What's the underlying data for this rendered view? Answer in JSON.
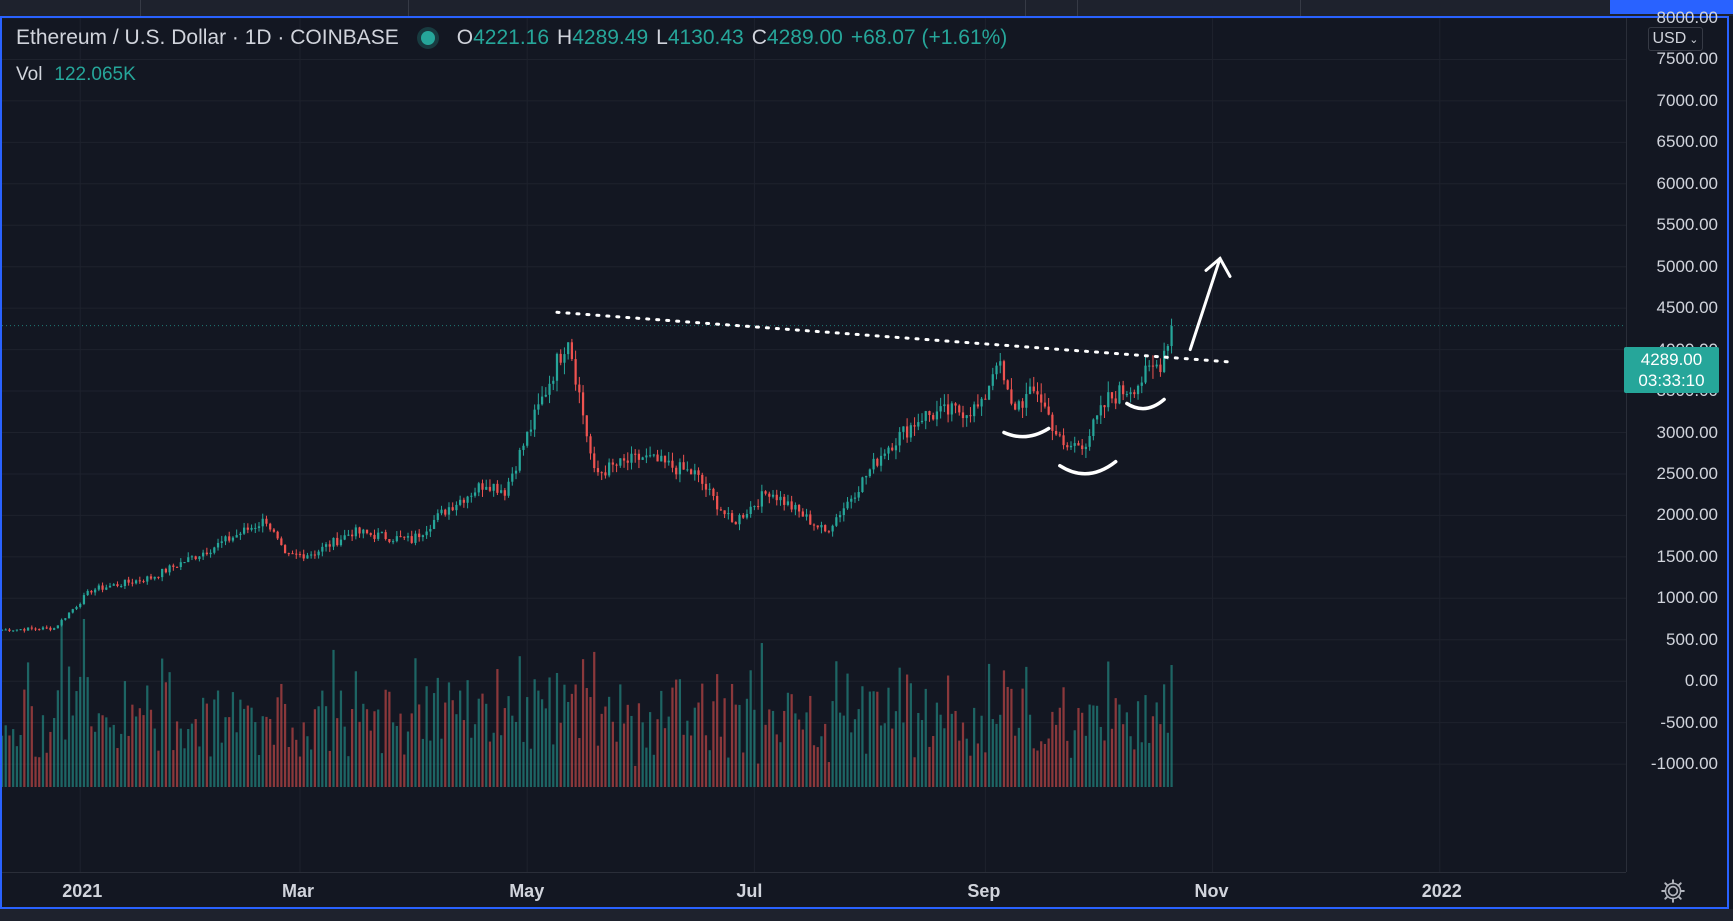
{
  "legend": {
    "symbol": "Ethereum / U.S. Dollar · 1D · COINBASE",
    "open_key": "O",
    "open": "4221.16",
    "high_key": "H",
    "high": "4289.49",
    "low_key": "L",
    "low": "4130.43",
    "close_key": "C",
    "close": "4289.00",
    "change": "+68.07 (+1.61%)"
  },
  "volume": {
    "label": "Vol",
    "value": "122.065K"
  },
  "currency_button": {
    "label": "USD",
    "icon": "chevron-down-icon"
  },
  "price_tag": {
    "price": "4289.00",
    "countdown": "03:33:10"
  },
  "y_axis_labels": [
    "8000.00",
    "7500.00",
    "7000.00",
    "6500.00",
    "6000.00",
    "5500.00",
    "5000.00",
    "4500.00",
    "4000.00",
    "3500.00",
    "3000.00",
    "2500.00",
    "2000.00",
    "1500.00",
    "1000.00",
    "500.00",
    "0.00",
    "-500.00",
    "-1000.00"
  ],
  "x_axis_labels": [
    "2021",
    "Mar",
    "May",
    "Jul",
    "Sep",
    "Nov",
    "2022"
  ],
  "settings_icon": "gear-icon",
  "colors": {
    "up": "#26a69a",
    "down": "#ef5350",
    "background": "#131722",
    "grid": "#1e222d",
    "accent": "#2962ff",
    "annotation": "#ffffff"
  },
  "chart_data": {
    "type": "candlestick",
    "series_volume": true,
    "ylim": [
      -1200,
      8000
    ],
    "x_range": [
      "2020-12-11",
      "2022-02-20"
    ],
    "price_path": [
      [
        "2020-12-11",
        620
      ],
      [
        "2020-12-25",
        640
      ],
      [
        "2021-01-04",
        1100
      ],
      [
        "2021-01-20",
        1250
      ],
      [
        "2021-02-05",
        1600
      ],
      [
        "2021-02-20",
        1950
      ],
      [
        "2021-02-25",
        1500
      ],
      [
        "2021-03-05",
        1550
      ],
      [
        "2021-03-15",
        1800
      ],
      [
        "2021-03-31",
        1700
      ],
      [
        "2021-04-10",
        2100
      ],
      [
        "2021-04-20",
        2400
      ],
      [
        "2021-04-25",
        2300
      ],
      [
        "2021-05-05",
        3400
      ],
      [
        "2021-05-12",
        4180
      ],
      [
        "2021-05-19",
        2500
      ],
      [
        "2021-05-25",
        2600
      ],
      [
        "2021-06-01",
        2700
      ],
      [
        "2021-06-15",
        2500
      ],
      [
        "2021-06-25",
        1900
      ],
      [
        "2021-07-05",
        2300
      ],
      [
        "2021-07-20",
        1800
      ],
      [
        "2021-07-25",
        2100
      ],
      [
        "2021-08-05",
        2800
      ],
      [
        "2021-08-15",
        3200
      ],
      [
        "2021-08-31",
        3300
      ],
      [
        "2021-09-04",
        3900
      ],
      [
        "2021-09-08",
        3300
      ],
      [
        "2021-09-15",
        3500
      ],
      [
        "2021-09-22",
        2800
      ],
      [
        "2021-09-28",
        2900
      ],
      [
        "2021-10-04",
        3400
      ],
      [
        "2021-10-12",
        3600
      ],
      [
        "2021-10-18",
        3850
      ],
      [
        "2021-10-21",
        4289
      ]
    ],
    "annotations": [
      "dotted resistance trendline",
      "inverse head and shoulders arcs",
      "upward arrow"
    ]
  }
}
